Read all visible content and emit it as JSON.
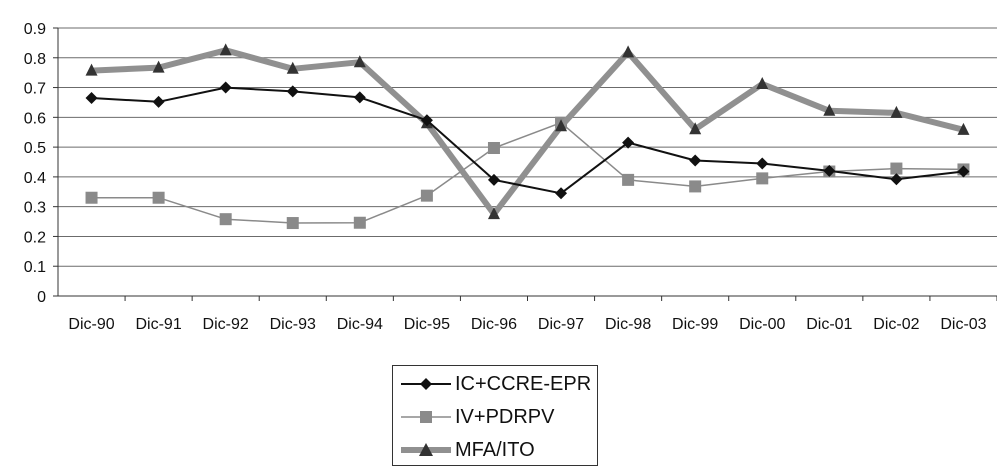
{
  "chart_data": {
    "type": "line",
    "title": "",
    "xlabel": "",
    "ylabel": "",
    "categories": [
      "Dic-90",
      "Dic-91",
      "Dic-92",
      "Dic-93",
      "Dic-94",
      "Dic-95",
      "Dic-96",
      "Dic-97",
      "Dic-98",
      "Dic-99",
      "Dic-00",
      "Dic-01",
      "Dic-02",
      "Dic-03"
    ],
    "ylim": [
      0,
      0.9
    ],
    "yticks": [
      "0",
      "0.1",
      "0.2",
      "0.3",
      "0.4",
      "0.5",
      "0.6",
      "0.7",
      "0.8",
      "0.9"
    ],
    "grid": true,
    "legend_position": "bottom-center",
    "series": [
      {
        "name": "IC+CCRE-EPR",
        "marker": "diamond",
        "color": "#111111",
        "values": [
          0.665,
          0.652,
          0.7,
          0.687,
          0.667,
          0.59,
          0.39,
          0.345,
          0.515,
          0.455,
          0.445,
          0.42,
          0.392,
          0.418
        ]
      },
      {
        "name": "IV+PDRPV",
        "marker": "square",
        "color": "#8a8a8a",
        "values": [
          0.33,
          0.33,
          0.258,
          0.245,
          0.246,
          0.337,
          0.497,
          0.582,
          0.39,
          0.368,
          0.395,
          0.418,
          0.428,
          0.425
        ]
      },
      {
        "name": "MFA/ITO",
        "marker": "triangle",
        "color": "#909090",
        "values": [
          0.757,
          0.767,
          0.825,
          0.763,
          0.785,
          0.58,
          0.275,
          0.57,
          0.818,
          0.56,
          0.712,
          0.622,
          0.615,
          0.558
        ]
      }
    ]
  }
}
